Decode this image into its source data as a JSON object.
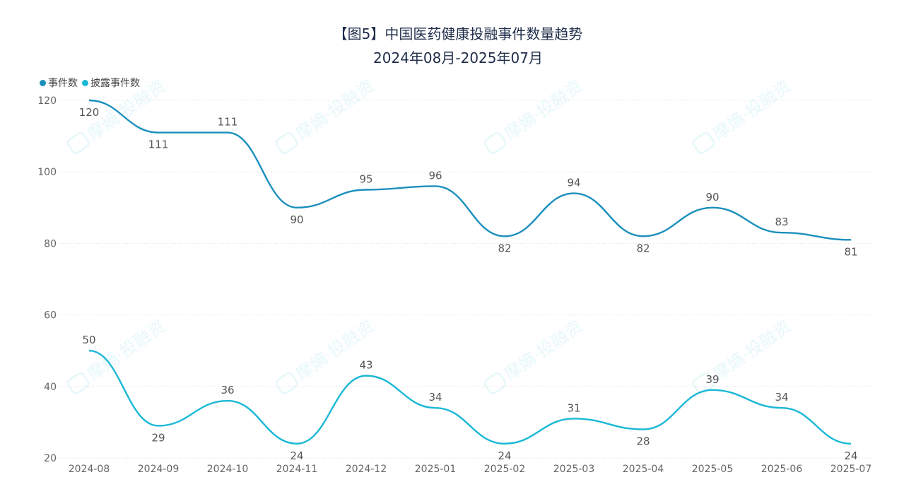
{
  "title": "【图5】中国医药健康投融事件数量趋势",
  "subtitle": "2024年08月-2025年07月",
  "watermark": "摩熵·投融资",
  "legend": [
    {
      "name": "事件数",
      "color": "#1a8fbd"
    },
    {
      "name": "披露事件数",
      "color": "#1ab8d6"
    }
  ],
  "chart_data": {
    "type": "line",
    "title": "【图5】中国医药健康投融事件数量趋势",
    "subtitle": "2024年08月-2025年07月",
    "xlabel": "",
    "ylabel": "",
    "ylim": [
      20,
      120
    ],
    "yticks": [
      20,
      40,
      60,
      80,
      100,
      120
    ],
    "grid": true,
    "legend_position": "top-left",
    "categories": [
      "2024-08",
      "2024-09",
      "2024-10",
      "2024-11",
      "2024-12",
      "2025-01",
      "2025-02",
      "2025-03",
      "2025-04",
      "2025-05",
      "2025-06",
      "2025-07"
    ],
    "series": [
      {
        "name": "事件数",
        "color": "#1a8fbd",
        "values": [
          120,
          111,
          111,
          90,
          95,
          96,
          82,
          94,
          82,
          90,
          83,
          81
        ]
      },
      {
        "name": "披露事件数",
        "color": "#1ab8d6",
        "values": [
          50,
          29,
          36,
          24,
          43,
          34,
          24,
          31,
          28,
          39,
          34,
          24
        ]
      }
    ]
  }
}
